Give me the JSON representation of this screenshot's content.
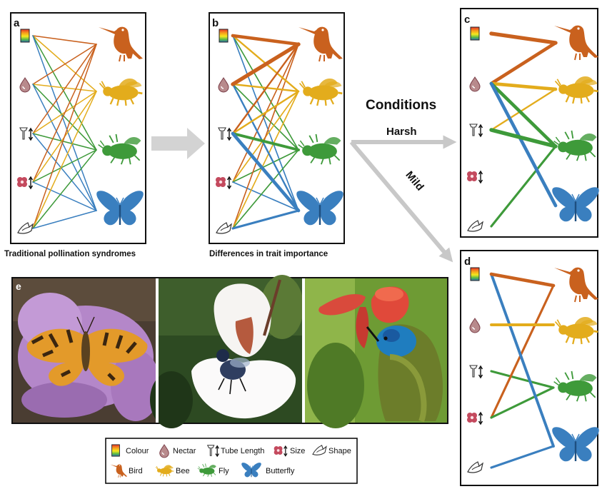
{
  "panels": {
    "a": {
      "label": "a",
      "caption": "Traditional pollination syndromes"
    },
    "b": {
      "label": "b",
      "caption": "Differences in trait importance"
    },
    "c": {
      "label": "c"
    },
    "d": {
      "label": "d"
    },
    "e": {
      "label": "e"
    }
  },
  "conditions": {
    "title": "Conditions",
    "harsh": "Harsh",
    "mild": "Mild"
  },
  "legend": {
    "colour": "Colour",
    "nectar": "Nectar",
    "tube_length": "Tube Length",
    "size": "Size",
    "shape": "Shape",
    "bird": "Bird",
    "bee": "Bee",
    "fly": "Fly",
    "butterfly": "Butterfly"
  },
  "colors": {
    "bird": "#c9611e",
    "bee": "#e3ac1c",
    "fly": "#3e9a3a",
    "butterfly": "#3a7fbf"
  },
  "network": {
    "traits": [
      "colour",
      "nectar",
      "tube_length",
      "size",
      "shape"
    ],
    "pollinators": [
      "bird",
      "bee",
      "fly",
      "butterfly"
    ],
    "a": [
      [
        1,
        1,
        1,
        1
      ],
      [
        1,
        1,
        1,
        1
      ],
      [
        1,
        1,
        1,
        1
      ],
      [
        1,
        1,
        1,
        1
      ],
      [
        1,
        1,
        1,
        1
      ]
    ],
    "b": [
      [
        5,
        2,
        1,
        1
      ],
      [
        6,
        2,
        1,
        2
      ],
      [
        2,
        2,
        4,
        5
      ],
      [
        1,
        1,
        1,
        1
      ],
      [
        1,
        1,
        1,
        3
      ]
    ],
    "c": [
      [
        6,
        0,
        0,
        0
      ],
      [
        5,
        5,
        5,
        5
      ],
      [
        0,
        2,
        6,
        0
      ],
      [
        0,
        0,
        0,
        0
      ],
      [
        0,
        0,
        3,
        0
      ]
    ],
    "d": [
      [
        5,
        0,
        0,
        4
      ],
      [
        0,
        4,
        0,
        0
      ],
      [
        0,
        0,
        3,
        0
      ],
      [
        3,
        0,
        3,
        0
      ],
      [
        0,
        0,
        0,
        3
      ]
    ]
  }
}
